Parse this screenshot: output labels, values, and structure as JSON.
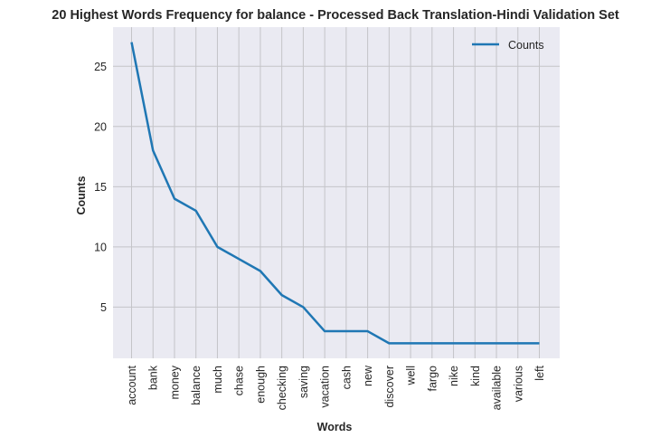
{
  "chart_data": {
    "type": "line",
    "title": "20 Highest Words Frequency for balance - Processed Back Translation-Hindi Validation Set",
    "xlabel": "Words",
    "ylabel": "Counts",
    "categories": [
      "account",
      "bank",
      "money",
      "balance",
      "much",
      "chase",
      "enough",
      "checking",
      "saving",
      "vacation",
      "cash",
      "new",
      "discover",
      "well",
      "fargo",
      "nike",
      "kind",
      "available",
      "various",
      "left"
    ],
    "series": [
      {
        "name": "Counts",
        "values": [
          27,
          18,
          14,
          13,
          10,
          9,
          8,
          6,
          5,
          3,
          3,
          3,
          2,
          2,
          2,
          2,
          2,
          2,
          2,
          2
        ]
      }
    ],
    "yticks": [
      5,
      10,
      15,
      20,
      25
    ],
    "ylim": [
      0.75,
      28.25
    ],
    "grid": true,
    "legend": "top-right",
    "colors": {
      "line": "#1f77b4",
      "plot_bg": "#eaeaf2",
      "grid": "#c4c4c8"
    }
  }
}
